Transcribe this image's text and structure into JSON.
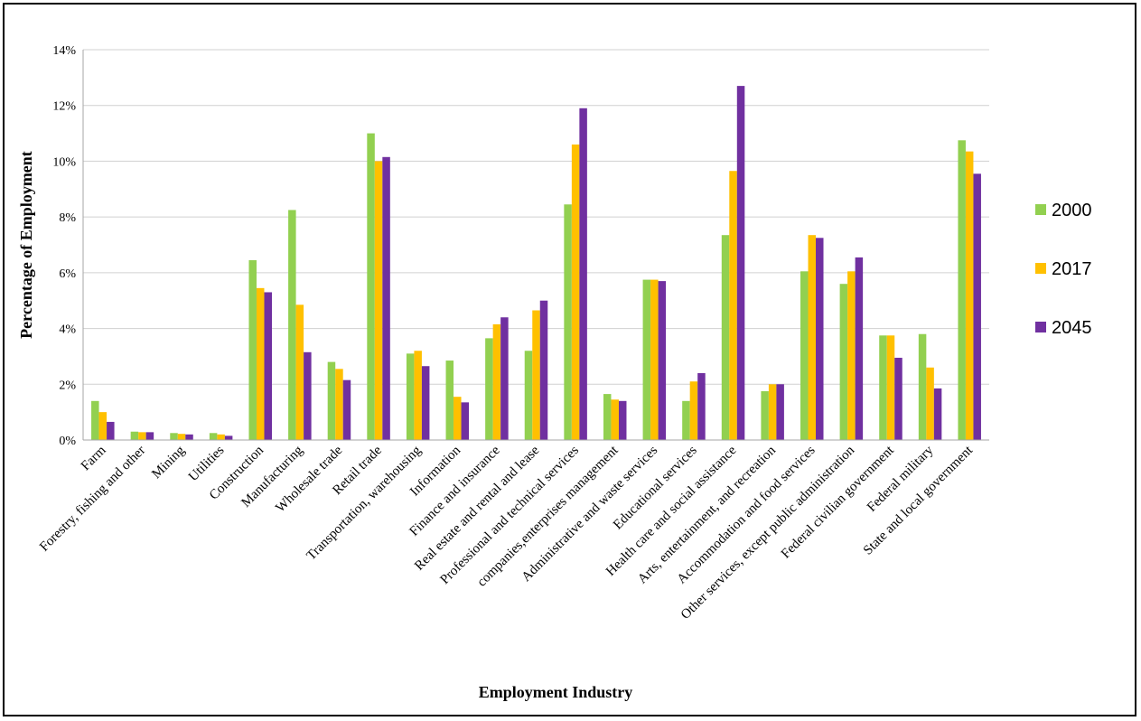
{
  "chart_data": {
    "type": "bar",
    "title": "",
    "xlabel": "Employment Industry",
    "ylabel": "Percentage of Employment",
    "ylim": [
      0,
      14
    ],
    "ytick_step": 2,
    "ytick_suffix": "%",
    "grid": true,
    "legend_position": "right",
    "categories": [
      "Farm",
      "Forestry, fishing and other",
      "Mining",
      "Utilities",
      "Construction",
      "Manufacturing",
      "Wholesale trade",
      "Retail trade",
      "Transportation, warehousing",
      "Information",
      "Finance and insurance",
      "Real estate and rental and lease",
      "Professional and technical services",
      "companies,enterprises management",
      "Administrative and waste services",
      "Educational services",
      "Health care and social assistance",
      "Arts, entertainment, and recreation",
      "Accommodation and food services",
      "Other services, except public administration",
      "Federal civilian government",
      "Federal military",
      "State and local government"
    ],
    "series": [
      {
        "name": "2000",
        "color": "#92D050",
        "values": [
          1.4,
          0.3,
          0.25,
          0.25,
          6.45,
          8.25,
          2.8,
          11.0,
          3.1,
          2.85,
          3.65,
          3.2,
          8.45,
          1.65,
          5.75,
          1.4,
          7.35,
          1.75,
          6.05,
          5.6,
          3.75,
          3.8,
          10.75
        ]
      },
      {
        "name": "2017",
        "color": "#FFC000",
        "values": [
          1.0,
          0.28,
          0.22,
          0.2,
          5.45,
          4.85,
          2.55,
          10.0,
          3.2,
          1.55,
          4.15,
          4.65,
          10.6,
          1.45,
          5.75,
          2.1,
          9.65,
          2.0,
          7.35,
          6.05,
          3.75,
          2.6,
          10.35
        ]
      },
      {
        "name": "2045",
        "color": "#7030A0",
        "values": [
          0.65,
          0.28,
          0.2,
          0.15,
          5.3,
          3.15,
          2.15,
          10.15,
          2.65,
          1.35,
          4.4,
          5.0,
          11.9,
          1.4,
          5.7,
          2.4,
          12.7,
          2.0,
          7.25,
          6.55,
          2.95,
          1.85,
          9.55
        ]
      }
    ]
  }
}
